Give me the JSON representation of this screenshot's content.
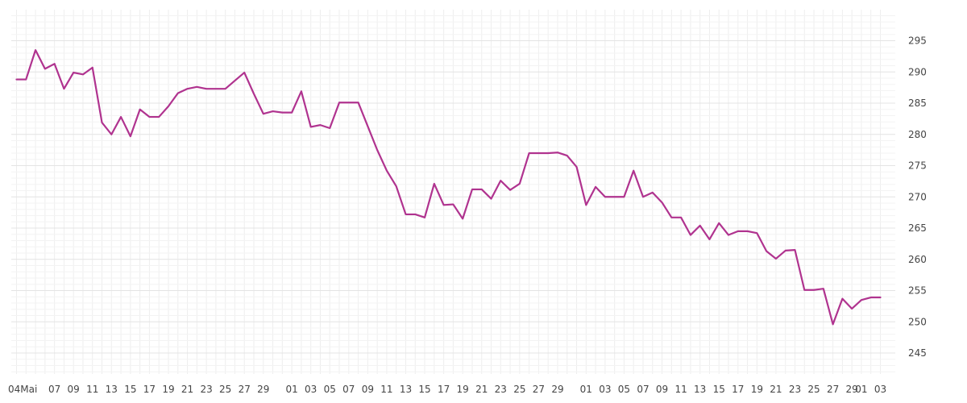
{
  "chart_data": {
    "type": "line",
    "title": "",
    "xlabel": "",
    "ylabel": "",
    "ylim": [
      241,
      299
    ],
    "yticks": [
      245,
      250,
      255,
      260,
      265,
      270,
      275,
      280,
      285,
      290,
      295
    ],
    "xtick_labels": [
      "04Mai",
      "07",
      "09",
      "11",
      "13",
      "15",
      "17",
      "19",
      "21",
      "23",
      "25",
      "27",
      "29",
      "01",
      "03",
      "05",
      "07",
      "09",
      "11",
      "13",
      "15",
      "17",
      "19",
      "21",
      "23",
      "25",
      "27",
      "29",
      "01",
      "03",
      "05",
      "07",
      "09",
      "11",
      "13",
      "15",
      "17",
      "19",
      "21",
      "23",
      "25",
      "27",
      "29",
      "01",
      "03"
    ],
    "grid": true,
    "line_color": "#b0338f",
    "series": [
      {
        "name": "",
        "values": [
          288.8,
          288.8,
          293.5,
          290.5,
          291.3,
          287.3,
          289.9,
          289.6,
          290.7,
          281.9,
          280.0,
          282.8,
          279.7,
          284.0,
          282.8,
          282.8,
          284.5,
          286.6,
          287.3,
          287.6,
          287.3,
          287.3,
          287.3,
          288.6,
          289.9,
          286.5,
          283.3,
          283.7,
          283.5,
          283.5,
          286.9,
          281.2,
          281.5,
          281.0,
          285.1,
          285.1,
          285.1,
          281.3,
          277.5,
          274.2,
          271.7,
          267.2,
          267.2,
          266.7,
          272.1,
          268.7,
          268.8,
          266.5,
          271.2,
          271.2,
          269.7,
          272.6,
          271.1,
          272.1,
          277.0,
          277.0,
          277.0,
          277.1,
          276.6,
          274.8,
          268.7,
          271.6,
          270.0,
          270.0,
          270.0,
          274.2,
          270.0,
          270.7,
          269.1,
          266.7,
          266.7,
          263.9,
          265.4,
          263.2,
          265.8,
          263.9,
          264.5,
          264.5,
          264.2,
          261.3,
          260.1,
          261.4,
          261.5,
          255.1,
          255.1,
          255.3,
          249.6,
          253.7,
          252.1,
          253.5,
          253.9,
          253.9
        ]
      }
    ]
  }
}
